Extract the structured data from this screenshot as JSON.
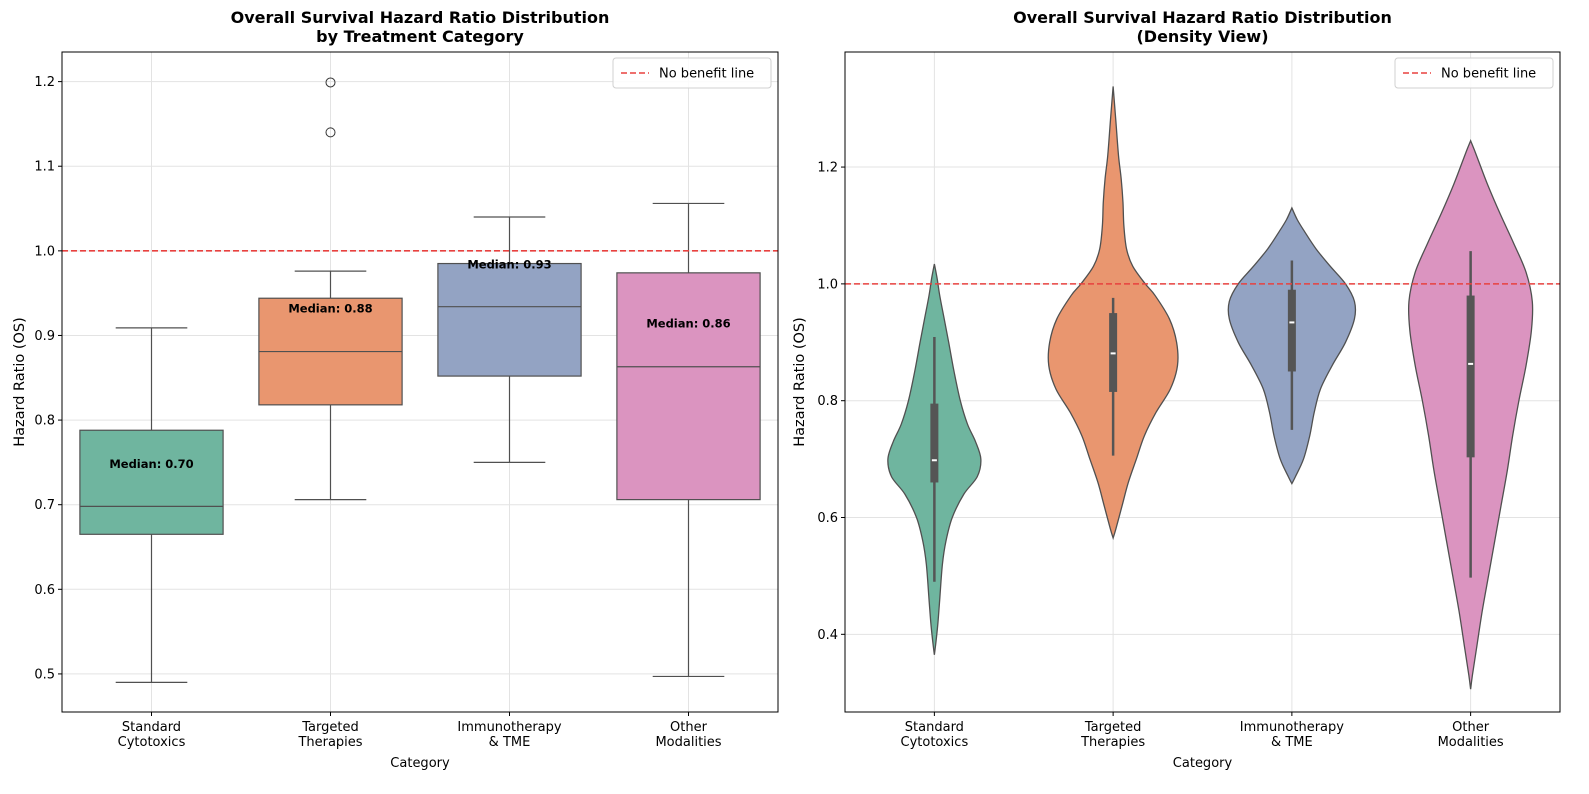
{
  "chart_data": [
    {
      "type": "box",
      "title": "Overall Survival Hazard Ratio Distribution\nby Treatment Category",
      "xlabel": "Category",
      "ylabel": "Hazard Ratio (OS)",
      "ylim": [
        0.455,
        1.235
      ],
      "yticks": [
        0.5,
        0.6,
        0.7,
        0.8,
        0.9,
        1.0,
        1.1,
        1.2
      ],
      "grid": true,
      "categories": [
        "Standard\nCytotoxics",
        "Targeted\nTherapies",
        "Immunotherapy\n& TME",
        "Other\nModalities"
      ],
      "colors": [
        "#6fb59f",
        "#e9966f",
        "#93a3c3",
        "#db94c0"
      ],
      "boxes": [
        {
          "whisker_low": 0.49,
          "q1": 0.665,
          "median": 0.698,
          "q3": 0.788,
          "whisker_high": 0.909,
          "outliers": []
        },
        {
          "whisker_low": 0.706,
          "q1": 0.818,
          "median": 0.881,
          "q3": 0.944,
          "whisker_high": 0.976,
          "outliers": [
            1.14,
            1.199
          ]
        },
        {
          "whisker_low": 0.75,
          "q1": 0.852,
          "median": 0.934,
          "q3": 0.985,
          "whisker_high": 1.04,
          "outliers": []
        },
        {
          "whisker_low": 0.497,
          "q1": 0.706,
          "median": 0.863,
          "q3": 0.974,
          "whisker_high": 1.056,
          "outliers": []
        }
      ],
      "annotations": [
        {
          "text": "Median: 0.70",
          "x": 0,
          "y": 0.748
        },
        {
          "text": "Median: 0.88",
          "x": 1,
          "y": 0.932
        },
        {
          "text": "Median: 0.93",
          "x": 2,
          "y": 0.984
        },
        {
          "text": "Median: 0.86",
          "x": 3,
          "y": 0.914
        }
      ],
      "reference_line": {
        "y": 1.0,
        "label": "No benefit line",
        "color": "#e8413f"
      },
      "legend": "top-right"
    },
    {
      "type": "violin",
      "title": "Overall Survival Hazard Ratio Distribution\n(Density View)",
      "xlabel": "Category",
      "ylabel": "Hazard Ratio (OS)",
      "ylim": [
        0.267,
        1.397
      ],
      "yticks": [
        0.4,
        0.6,
        0.8,
        1.0,
        1.2
      ],
      "grid": true,
      "categories": [
        "Standard\nCytotoxics",
        "Targeted\nTherapies",
        "Immunotherapy\n& TME",
        "Other\nModalities"
      ],
      "colors": [
        "#6fb59f",
        "#e9966f",
        "#93a3c3",
        "#db94c0"
      ],
      "violins": [
        {
          "range": [
            0.365,
            1.034
          ],
          "profile": [
            [
              0.365,
              0.0
            ],
            [
              0.39,
              0.02
            ],
            [
              0.42,
              0.04
            ],
            [
              0.46,
              0.06
            ],
            [
              0.52,
              0.09
            ],
            [
              0.56,
              0.13
            ],
            [
              0.6,
              0.2
            ],
            [
              0.64,
              0.33
            ],
            [
              0.67,
              0.48
            ],
            [
              0.7,
              0.52
            ],
            [
              0.73,
              0.46
            ],
            [
              0.76,
              0.37
            ],
            [
              0.8,
              0.29
            ],
            [
              0.85,
              0.22
            ],
            [
              0.9,
              0.16
            ],
            [
              0.94,
              0.11
            ],
            [
              0.98,
              0.06
            ],
            [
              1.01,
              0.03
            ],
            [
              1.034,
              0.0
            ]
          ],
          "q1": 0.66,
          "median": 0.698,
          "q3": 0.795,
          "whisker_low": 0.49,
          "whisker_high": 0.909
        },
        {
          "range": [
            0.565,
            1.338
          ],
          "profile": [
            [
              0.565,
              0.0
            ],
            [
              0.58,
              0.03
            ],
            [
              0.62,
              0.1
            ],
            [
              0.66,
              0.17
            ],
            [
              0.7,
              0.26
            ],
            [
              0.74,
              0.35
            ],
            [
              0.78,
              0.48
            ],
            [
              0.82,
              0.64
            ],
            [
              0.86,
              0.72
            ],
            [
              0.9,
              0.71
            ],
            [
              0.94,
              0.63
            ],
            [
              0.98,
              0.47
            ],
            [
              1.0,
              0.36
            ],
            [
              1.03,
              0.22
            ],
            [
              1.06,
              0.15
            ],
            [
              1.1,
              0.12
            ],
            [
              1.14,
              0.11
            ],
            [
              1.18,
              0.09
            ],
            [
              1.22,
              0.06
            ],
            [
              1.28,
              0.03
            ],
            [
              1.338,
              0.0
            ]
          ],
          "q1": 0.815,
          "median": 0.881,
          "q3": 0.95,
          "whisker_low": 0.706,
          "whisker_high": 0.976
        },
        {
          "range": [
            0.658,
            1.13
          ],
          "profile": [
            [
              0.658,
              0.0
            ],
            [
              0.67,
              0.04
            ],
            [
              0.7,
              0.13
            ],
            [
              0.74,
              0.2
            ],
            [
              0.78,
              0.25
            ],
            [
              0.82,
              0.32
            ],
            [
              0.86,
              0.45
            ],
            [
              0.9,
              0.6
            ],
            [
              0.94,
              0.7
            ],
            [
              0.97,
              0.7
            ],
            [
              1.0,
              0.6
            ],
            [
              1.03,
              0.43
            ],
            [
              1.06,
              0.27
            ],
            [
              1.09,
              0.14
            ],
            [
              1.11,
              0.06
            ],
            [
              1.13,
              0.0
            ]
          ],
          "q1": 0.85,
          "median": 0.934,
          "q3": 0.99,
          "whisker_low": 0.75,
          "whisker_high": 1.04
        },
        {
          "range": [
            0.306,
            1.245
          ],
          "profile": [
            [
              0.306,
              0.0
            ],
            [
              0.33,
              0.02
            ],
            [
              0.38,
              0.07
            ],
            [
              0.44,
              0.13
            ],
            [
              0.5,
              0.2
            ],
            [
              0.56,
              0.27
            ],
            [
              0.62,
              0.34
            ],
            [
              0.68,
              0.41
            ],
            [
              0.74,
              0.47
            ],
            [
              0.8,
              0.54
            ],
            [
              0.86,
              0.62
            ],
            [
              0.92,
              0.68
            ],
            [
              0.97,
              0.69
            ],
            [
              1.02,
              0.62
            ],
            [
              1.07,
              0.48
            ],
            [
              1.12,
              0.33
            ],
            [
              1.17,
              0.19
            ],
            [
              1.21,
              0.09
            ],
            [
              1.23,
              0.04
            ],
            [
              1.245,
              0.0
            ]
          ],
          "q1": 0.703,
          "median": 0.863,
          "q3": 0.98,
          "whisker_low": 0.497,
          "whisker_high": 1.056
        }
      ],
      "reference_line": {
        "y": 1.0,
        "label": "No benefit line",
        "color": "#e8413f"
      },
      "legend": "top-right"
    }
  ]
}
